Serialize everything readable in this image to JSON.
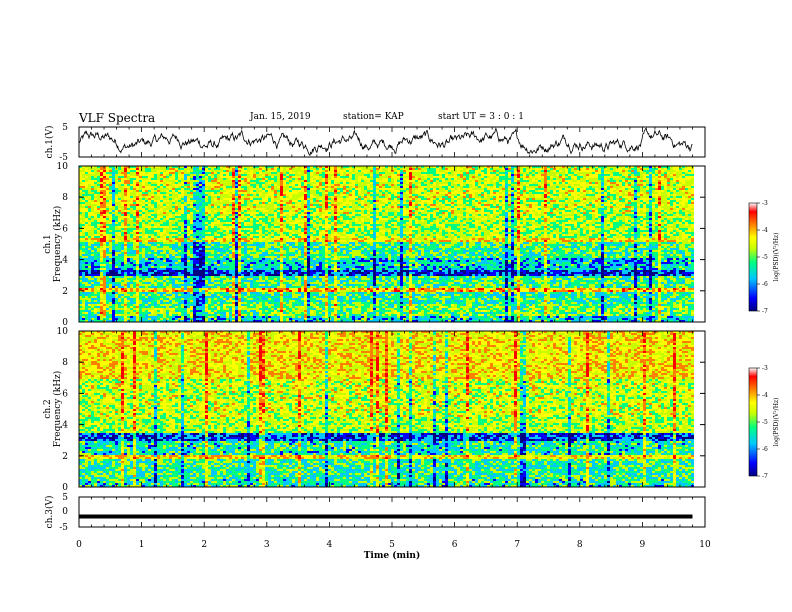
{
  "header": {
    "title": "VLF Spectra",
    "date": "Jan. 15, 2019",
    "station": "station= KAP",
    "start": "start  UT =  3 : 0 : 1"
  },
  "colors": {
    "axis": "#000000",
    "trace": "#000000",
    "colormap": [
      "#000080",
      "#0000ff",
      "#00c8ff",
      "#00ff80",
      "#c8ff00",
      "#ffff00",
      "#ff8000",
      "#ff0000",
      "#ffffff"
    ]
  },
  "chart_data": [
    {
      "type": "line",
      "name": "ch1-waveform",
      "ylabel": "ch.1(V)",
      "ylim": [
        -5,
        5
      ],
      "yticks": [
        "5",
        "-5"
      ],
      "xlim": [
        0,
        10
      ],
      "description_of_values": "noisy waveform varying roughly between -4 and 4 V over 0 to 9.8 min"
    },
    {
      "type": "heatmap",
      "name": "ch1-spectrogram",
      "ylabel": "ch.1\nFrequency (kHz)",
      "ylim": [
        0,
        10
      ],
      "yticks": [
        "0",
        "2",
        "4",
        "6",
        "8",
        "10"
      ],
      "xlim": [
        0,
        9.8
      ],
      "colorbar": {
        "label": "log(PSD)(V²/Hz)",
        "range": [
          -7,
          -3
        ],
        "ticks": [
          "-3",
          "-4",
          "-5",
          "-6",
          "-7"
        ]
      },
      "bands_khz": [
        {
          "from": 0.0,
          "to": 0.5,
          "level": -5.5
        },
        {
          "from": 0.5,
          "to": 1.2,
          "level": -5.0
        },
        {
          "from": 1.2,
          "to": 2.0,
          "level": -5.3
        },
        {
          "from": 2.0,
          "to": 2.3,
          "level": -4.0
        },
        {
          "from": 2.3,
          "to": 3.0,
          "level": -5.2
        },
        {
          "from": 3.0,
          "to": 3.4,
          "level": -6.3
        },
        {
          "from": 3.4,
          "to": 4.2,
          "level": -5.6
        },
        {
          "from": 4.2,
          "to": 5.2,
          "level": -5.2
        },
        {
          "from": 5.2,
          "to": 5.5,
          "level": -4.3
        },
        {
          "from": 5.5,
          "to": 7.0,
          "level": -4.8
        },
        {
          "from": 7.0,
          "to": 10.0,
          "level": -4.6
        }
      ]
    },
    {
      "type": "heatmap",
      "name": "ch2-spectrogram",
      "ylabel": "ch.2\nFrequency (kHz)",
      "ylim": [
        0,
        10
      ],
      "yticks": [
        "0",
        "2",
        "4",
        "6",
        "8",
        "10"
      ],
      "xlim": [
        0,
        9.8
      ],
      "colorbar": {
        "label": "log(PSD)(V²/Hz)",
        "range": [
          -7,
          -3
        ],
        "ticks": [
          "-3",
          "-4",
          "-5",
          "-6",
          "-7"
        ]
      },
      "bands_khz": [
        {
          "from": 0.0,
          "to": 0.6,
          "level": -5.4
        },
        {
          "from": 0.6,
          "to": 1.8,
          "level": -5.3
        },
        {
          "from": 1.8,
          "to": 2.1,
          "level": -4.2
        },
        {
          "from": 2.1,
          "to": 3.0,
          "level": -5.4
        },
        {
          "from": 3.0,
          "to": 3.5,
          "level": -6.2
        },
        {
          "from": 3.5,
          "to": 4.5,
          "level": -4.8
        },
        {
          "from": 4.5,
          "to": 7.0,
          "level": -4.6
        },
        {
          "from": 7.0,
          "to": 10.0,
          "level": -4.3
        }
      ]
    },
    {
      "type": "line",
      "name": "ch3-waveform",
      "ylabel": "ch.3(V)",
      "ylim": [
        -5,
        5
      ],
      "yticks": [
        "5",
        "0",
        "-5"
      ],
      "xlim": [
        0,
        10
      ],
      "values_constant": -1.5,
      "xlabel": "Time (min)",
      "xticks": [
        "0",
        "1",
        "2",
        "3",
        "4",
        "5",
        "6",
        "7",
        "8",
        "9",
        "10"
      ]
    }
  ]
}
